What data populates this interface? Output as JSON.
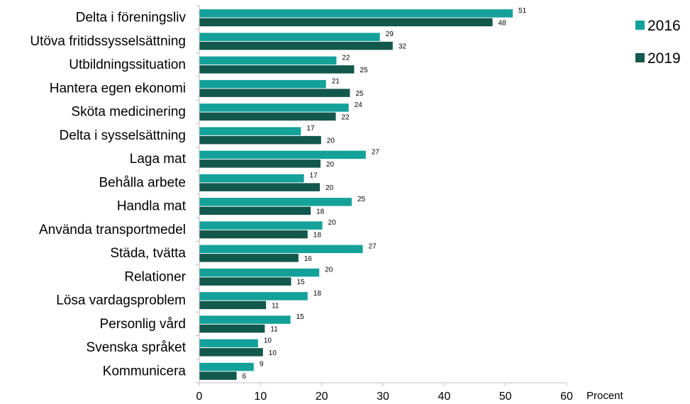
{
  "chart_data": {
    "type": "bar",
    "orientation": "horizontal",
    "categories": [
      "Delta i föreningsliv",
      "Utöva fritidssysselsättning",
      "Utbildningssituation",
      "Hantera egen ekonomi",
      "Sköta medicinering",
      "Delta i sysselsättning",
      "Laga mat",
      "Behålla arbete",
      "Handla mat",
      "Använda transportmedel",
      "Städa, tvätta",
      "Relationer",
      "Lösa vardagsproblem",
      "Personlig vård",
      "Svenska språket",
      "Kommunicera"
    ],
    "series": [
      {
        "name": "2016",
        "color": "#13a19a",
        "values": [
          51,
          29,
          22,
          21,
          24,
          17,
          27,
          17,
          25,
          20,
          27,
          20,
          18,
          15,
          10,
          9
        ],
        "display_values": [
          51.2,
          29.5,
          22.4,
          20.7,
          24.4,
          16.6,
          27.2,
          17.1,
          24.9,
          20.1,
          26.7,
          19.6,
          17.7,
          14.9,
          9.6,
          8.9
        ]
      },
      {
        "name": "2019",
        "color": "#12584c",
        "values": [
          48,
          32,
          25,
          25,
          22,
          20,
          20,
          20,
          18,
          18,
          16,
          15,
          11,
          11,
          10,
          6
        ],
        "display_values": [
          47.9,
          31.6,
          25.3,
          24.6,
          22.3,
          19.9,
          19.8,
          19.7,
          18.2,
          17.7,
          16.2,
          15.0,
          10.9,
          10.7,
          10.4,
          6.1
        ]
      }
    ],
    "xlim": [
      0,
      60
    ],
    "xticks": [
      0,
      10,
      20,
      30,
      40,
      50,
      60
    ],
    "xlabel": "Procent",
    "legend_position": "right"
  }
}
